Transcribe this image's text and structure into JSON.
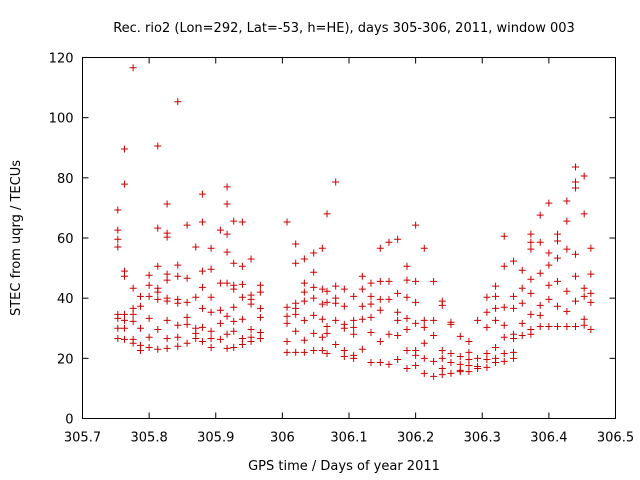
{
  "chart_data": {
    "type": "scatter",
    "title": "Rec. rio2 (Lon=292, Lat=-53, h=HE), days 305-306, 2011, window 003",
    "xlabel": "GPS time / Days of year 2011",
    "ylabel": "STEC from uqrg / TECUs",
    "xlim": [
      305.7,
      306.5
    ],
    "ylim": [
      0,
      120
    ],
    "x_ticks": [
      305.7,
      305.8,
      305.9,
      306.0,
      306.1,
      306.2,
      306.3,
      306.4,
      306.5
    ],
    "x_tick_labels": [
      "305.7",
      "305.8",
      "305.9",
      "306",
      "306.1",
      "306.2",
      "306.3",
      "306.4",
      "306.5"
    ],
    "y_ticks": [
      0,
      20,
      40,
      60,
      80,
      100,
      120
    ],
    "y_tick_labels": [
      "0",
      "20",
      "40",
      "60",
      "80",
      "100",
      "120"
    ],
    "marker": "+",
    "color": "#cc0000",
    "grid": false,
    "points": [
      [
        305.753,
        69.3
      ],
      [
        305.753,
        62.6
      ],
      [
        305.753,
        59.6
      ],
      [
        305.753,
        57.0
      ],
      [
        305.753,
        34.6
      ],
      [
        305.753,
        33.3
      ],
      [
        305.753,
        30.0
      ],
      [
        305.753,
        26.6
      ],
      [
        305.763,
        89.6
      ],
      [
        305.763,
        77.9
      ],
      [
        305.763,
        49.0
      ],
      [
        305.763,
        47.3
      ],
      [
        305.763,
        34.6
      ],
      [
        305.763,
        32.6
      ],
      [
        305.763,
        30.0
      ],
      [
        305.763,
        26.3
      ],
      [
        305.776,
        116.6
      ],
      [
        305.776,
        43.3
      ],
      [
        305.776,
        36.6
      ],
      [
        305.776,
        34.6
      ],
      [
        305.776,
        32.3
      ],
      [
        305.776,
        26.3
      ],
      [
        305.776,
        25.0
      ],
      [
        305.787,
        40.6
      ],
      [
        305.787,
        37.3
      ],
      [
        305.787,
        30.0
      ],
      [
        305.787,
        24.3
      ],
      [
        305.787,
        22.6
      ],
      [
        305.8,
        47.6
      ],
      [
        305.8,
        44.3
      ],
      [
        305.8,
        40.6
      ],
      [
        305.8,
        33.3
      ],
      [
        305.8,
        27.0
      ],
      [
        305.8,
        23.6
      ],
      [
        305.813,
        90.6
      ],
      [
        305.813,
        63.3
      ],
      [
        305.813,
        50.6
      ],
      [
        305.813,
        43.3
      ],
      [
        305.813,
        42.0
      ],
      [
        305.813,
        39.6
      ],
      [
        305.813,
        29.6
      ],
      [
        305.813,
        23.0
      ],
      [
        305.827,
        71.3
      ],
      [
        305.827,
        61.6
      ],
      [
        305.827,
        60.3
      ],
      [
        305.827,
        48.0
      ],
      [
        305.827,
        46.0
      ],
      [
        305.827,
        40.0
      ],
      [
        305.827,
        39.0
      ],
      [
        305.827,
        32.6
      ],
      [
        305.827,
        26.6
      ],
      [
        305.827,
        23.3
      ],
      [
        305.843,
        105.3
      ],
      [
        305.843,
        51.0
      ],
      [
        305.843,
        47.3
      ],
      [
        305.843,
        39.6
      ],
      [
        305.843,
        38.3
      ],
      [
        305.843,
        31.0
      ],
      [
        305.843,
        27.0
      ],
      [
        305.843,
        24.0
      ],
      [
        305.857,
        64.3
      ],
      [
        305.857,
        46.6
      ],
      [
        305.857,
        38.6
      ],
      [
        305.857,
        33.6
      ],
      [
        305.857,
        31.3
      ],
      [
        305.857,
        25.0
      ],
      [
        305.87,
        57.0
      ],
      [
        305.87,
        40.3
      ],
      [
        305.87,
        30.0
      ],
      [
        305.87,
        28.3
      ],
      [
        305.87,
        26.6
      ],
      [
        305.88,
        74.6
      ],
      [
        305.88,
        65.3
      ],
      [
        305.88,
        49.0
      ],
      [
        305.88,
        43.6
      ],
      [
        305.88,
        36.6
      ],
      [
        305.88,
        30.3
      ],
      [
        305.88,
        25.6
      ],
      [
        305.893,
        56.6
      ],
      [
        305.893,
        49.6
      ],
      [
        305.893,
        40.3
      ],
      [
        305.893,
        35.3
      ],
      [
        305.893,
        29.0
      ],
      [
        305.893,
        26.6
      ],
      [
        305.893,
        23.6
      ],
      [
        305.907,
        62.6
      ],
      [
        305.907,
        45.0
      ],
      [
        305.907,
        36.0
      ],
      [
        305.907,
        31.6
      ],
      [
        305.907,
        26.3
      ],
      [
        305.917,
        77.0
      ],
      [
        305.917,
        71.3
      ],
      [
        305.917,
        61.3
      ],
      [
        305.917,
        55.3
      ],
      [
        305.917,
        45.0
      ],
      [
        305.917,
        34.0
      ],
      [
        305.917,
        28.0
      ],
      [
        305.917,
        23.3
      ],
      [
        305.927,
        65.6
      ],
      [
        305.927,
        51.6
      ],
      [
        305.927,
        44.3
      ],
      [
        305.927,
        43.0
      ],
      [
        305.927,
        37.0
      ],
      [
        305.927,
        32.3
      ],
      [
        305.927,
        29.0
      ],
      [
        305.927,
        23.6
      ],
      [
        305.94,
        65.3
      ],
      [
        305.94,
        50.6
      ],
      [
        305.94,
        44.6
      ],
      [
        305.94,
        40.3
      ],
      [
        305.94,
        33.0
      ],
      [
        305.94,
        26.6
      ],
      [
        305.94,
        24.6
      ],
      [
        305.953,
        53.0
      ],
      [
        305.953,
        41.0
      ],
      [
        305.953,
        39.6
      ],
      [
        305.953,
        38.0
      ],
      [
        305.953,
        29.6
      ],
      [
        305.953,
        27.0
      ],
      [
        305.953,
        25.6
      ],
      [
        305.967,
        44.3
      ],
      [
        305.967,
        42.0
      ],
      [
        305.967,
        36.6
      ],
      [
        305.967,
        33.6
      ],
      [
        305.967,
        28.6
      ],
      [
        305.967,
        26.6
      ],
      [
        306.007,
        65.3
      ],
      [
        306.007,
        37.0
      ],
      [
        306.007,
        34.0
      ],
      [
        306.007,
        31.6
      ],
      [
        306.007,
        25.6
      ],
      [
        306.007,
        22.0
      ],
      [
        306.02,
        58.0
      ],
      [
        306.02,
        51.6
      ],
      [
        306.02,
        38.3
      ],
      [
        306.02,
        36.6
      ],
      [
        306.02,
        34.6
      ],
      [
        306.02,
        29.0
      ],
      [
        306.02,
        22.0
      ],
      [
        306.033,
        53.0
      ],
      [
        306.033,
        45.0
      ],
      [
        306.033,
        42.0
      ],
      [
        306.033,
        39.0
      ],
      [
        306.033,
        32.6
      ],
      [
        306.033,
        26.0
      ],
      [
        306.033,
        22.0
      ],
      [
        306.047,
        55.0
      ],
      [
        306.047,
        48.6
      ],
      [
        306.047,
        43.6
      ],
      [
        306.047,
        40.0
      ],
      [
        306.047,
        34.3
      ],
      [
        306.047,
        28.3
      ],
      [
        306.047,
        22.6
      ],
      [
        306.06,
        56.6
      ],
      [
        306.06,
        43.0
      ],
      [
        306.06,
        38.0
      ],
      [
        306.06,
        33.0
      ],
      [
        306.06,
        27.0
      ],
      [
        306.06,
        22.6
      ],
      [
        306.067,
        68.0
      ],
      [
        306.067,
        42.3
      ],
      [
        306.067,
        38.6
      ],
      [
        306.067,
        30.6
      ],
      [
        306.067,
        28.3
      ],
      [
        306.067,
        21.6
      ],
      [
        306.08,
        78.6
      ],
      [
        306.08,
        44.0
      ],
      [
        306.08,
        40.0
      ],
      [
        306.08,
        38.3
      ],
      [
        306.08,
        32.6
      ],
      [
        306.08,
        24.6
      ],
      [
        306.093,
        43.0
      ],
      [
        306.093,
        37.3
      ],
      [
        306.093,
        31.3
      ],
      [
        306.093,
        30.0
      ],
      [
        306.093,
        22.6
      ],
      [
        306.093,
        20.6
      ],
      [
        306.107,
        40.6
      ],
      [
        306.107,
        32.6
      ],
      [
        306.107,
        30.3
      ],
      [
        306.107,
        28.0
      ],
      [
        306.107,
        21.0
      ],
      [
        306.107,
        20.0
      ],
      [
        306.12,
        47.3
      ],
      [
        306.12,
        43.0
      ],
      [
        306.12,
        37.3
      ],
      [
        306.12,
        33.0
      ],
      [
        306.12,
        23.0
      ],
      [
        306.133,
        45.0
      ],
      [
        306.133,
        40.6
      ],
      [
        306.133,
        38.0
      ],
      [
        306.133,
        33.6
      ],
      [
        306.133,
        28.6
      ],
      [
        306.133,
        18.6
      ],
      [
        306.147,
        56.6
      ],
      [
        306.147,
        45.6
      ],
      [
        306.147,
        39.6
      ],
      [
        306.147,
        36.0
      ],
      [
        306.147,
        25.6
      ],
      [
        306.147,
        18.6
      ],
      [
        306.16,
        58.6
      ],
      [
        306.16,
        45.6
      ],
      [
        306.16,
        39.6
      ],
      [
        306.16,
        28.0
      ],
      [
        306.16,
        18.0
      ],
      [
        306.173,
        59.6
      ],
      [
        306.173,
        41.6
      ],
      [
        306.173,
        35.3
      ],
      [
        306.173,
        32.6
      ],
      [
        306.173,
        27.6
      ],
      [
        306.173,
        19.6
      ],
      [
        306.187,
        50.6
      ],
      [
        306.187,
        46.0
      ],
      [
        306.187,
        40.3
      ],
      [
        306.187,
        33.3
      ],
      [
        306.187,
        29.6
      ],
      [
        306.187,
        22.6
      ],
      [
        306.187,
        16.6
      ],
      [
        306.2,
        64.3
      ],
      [
        306.2,
        45.6
      ],
      [
        306.2,
        38.6
      ],
      [
        306.2,
        31.6
      ],
      [
        306.2,
        22.6
      ],
      [
        306.2,
        21.0
      ],
      [
        306.2,
        17.6
      ],
      [
        306.213,
        56.6
      ],
      [
        306.213,
        32.6
      ],
      [
        306.213,
        30.3
      ],
      [
        306.213,
        25.0
      ],
      [
        306.213,
        20.0
      ],
      [
        306.213,
        15.0
      ],
      [
        306.227,
        45.6
      ],
      [
        306.227,
        32.6
      ],
      [
        306.227,
        27.6
      ],
      [
        306.227,
        19.0
      ],
      [
        306.227,
        14.0
      ],
      [
        306.24,
        39.0
      ],
      [
        306.24,
        37.6
      ],
      [
        306.24,
        22.6
      ],
      [
        306.24,
        20.0
      ],
      [
        306.24,
        16.6
      ],
      [
        306.24,
        14.6
      ],
      [
        306.253,
        32.0
      ],
      [
        306.253,
        31.3
      ],
      [
        306.253,
        21.6
      ],
      [
        306.253,
        18.6
      ],
      [
        306.253,
        15.0
      ],
      [
        306.267,
        27.3
      ],
      [
        306.267,
        20.6
      ],
      [
        306.267,
        18.0
      ],
      [
        306.267,
        16.0
      ],
      [
        306.267,
        15.6
      ],
      [
        306.28,
        25.6
      ],
      [
        306.28,
        22.0
      ],
      [
        306.28,
        19.6
      ],
      [
        306.28,
        17.6
      ],
      [
        306.28,
        15.6
      ],
      [
        306.293,
        32.6
      ],
      [
        306.293,
        20.0
      ],
      [
        306.293,
        17.3
      ],
      [
        306.293,
        16.6
      ],
      [
        306.307,
        40.3
      ],
      [
        306.307,
        35.3
      ],
      [
        306.307,
        30.3
      ],
      [
        306.307,
        21.6
      ],
      [
        306.307,
        19.6
      ],
      [
        306.307,
        17.0
      ],
      [
        306.32,
        44.0
      ],
      [
        306.32,
        40.6
      ],
      [
        306.32,
        36.6
      ],
      [
        306.32,
        32.6
      ],
      [
        306.32,
        23.6
      ],
      [
        306.32,
        20.0
      ],
      [
        306.32,
        18.6
      ],
      [
        306.333,
        60.6
      ],
      [
        306.333,
        50.6
      ],
      [
        306.333,
        37.0
      ],
      [
        306.333,
        31.0
      ],
      [
        306.333,
        27.0
      ],
      [
        306.333,
        21.6
      ],
      [
        306.333,
        19.0
      ],
      [
        306.347,
        52.3
      ],
      [
        306.347,
        40.6
      ],
      [
        306.347,
        36.6
      ],
      [
        306.347,
        28.0
      ],
      [
        306.347,
        26.6
      ],
      [
        306.347,
        22.0
      ],
      [
        306.347,
        20.0
      ],
      [
        306.36,
        49.3
      ],
      [
        306.36,
        43.3
      ],
      [
        306.36,
        38.3
      ],
      [
        306.36,
        31.6
      ],
      [
        306.36,
        27.6
      ],
      [
        306.373,
        61.3
      ],
      [
        306.373,
        58.6
      ],
      [
        306.373,
        56.3
      ],
      [
        306.373,
        46.3
      ],
      [
        306.373,
        41.6
      ],
      [
        306.373,
        34.6
      ],
      [
        306.373,
        29.6
      ],
      [
        306.373,
        28.0
      ],
      [
        306.387,
        67.6
      ],
      [
        306.387,
        58.6
      ],
      [
        306.387,
        48.3
      ],
      [
        306.387,
        37.6
      ],
      [
        306.387,
        34.3
      ],
      [
        306.387,
        30.6
      ],
      [
        306.4,
        71.6
      ],
      [
        306.4,
        55.0
      ],
      [
        306.4,
        51.0
      ],
      [
        306.4,
        44.3
      ],
      [
        306.4,
        39.6
      ],
      [
        306.4,
        30.6
      ],
      [
        306.413,
        61.3
      ],
      [
        306.413,
        59.0
      ],
      [
        306.413,
        53.3
      ],
      [
        306.413,
        45.6
      ],
      [
        306.413,
        37.3
      ],
      [
        306.413,
        30.6
      ],
      [
        306.427,
        72.3
      ],
      [
        306.427,
        65.6
      ],
      [
        306.427,
        56.3
      ],
      [
        306.427,
        42.3
      ],
      [
        306.427,
        35.6
      ],
      [
        306.427,
        30.6
      ],
      [
        306.44,
        83.6
      ],
      [
        306.44,
        78.6
      ],
      [
        306.44,
        76.6
      ],
      [
        306.44,
        54.6
      ],
      [
        306.44,
        47.3
      ],
      [
        306.44,
        39.0
      ],
      [
        306.44,
        30.6
      ],
      [
        306.453,
        80.6
      ],
      [
        306.453,
        68.0
      ],
      [
        306.453,
        43.3
      ],
      [
        306.453,
        40.6
      ],
      [
        306.453,
        33.0
      ],
      [
        306.453,
        31.0
      ],
      [
        306.463,
        56.6
      ],
      [
        306.463,
        48.0
      ],
      [
        306.463,
        41.6
      ],
      [
        306.463,
        38.6
      ],
      [
        306.463,
        29.6
      ]
    ]
  }
}
